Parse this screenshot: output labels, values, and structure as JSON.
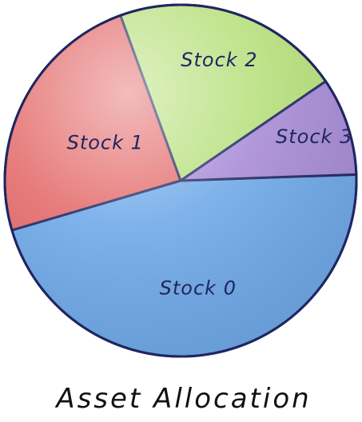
{
  "chart_data": {
    "type": "pie",
    "title": "Asset Allocation",
    "slices": [
      {
        "label": "Stock 0",
        "value": 46,
        "color": "#6ea8e8"
      },
      {
        "label": "Stock 1",
        "value": 24,
        "color": "#e46a6a"
      },
      {
        "label": "Stock 2",
        "value": 21,
        "color": "#b6df7a"
      },
      {
        "label": "Stock 3",
        "value": 9,
        "color": "#a78ad6"
      }
    ]
  }
}
